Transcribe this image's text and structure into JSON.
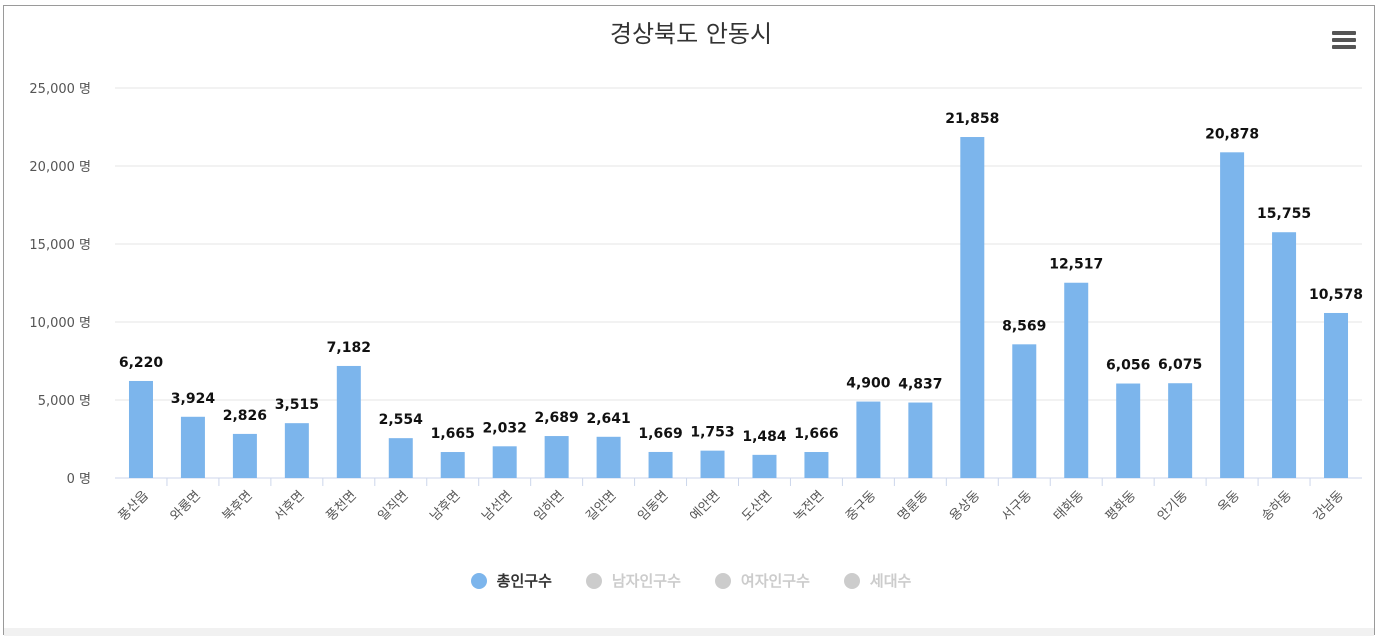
{
  "colors": {
    "bar": "#7cb5ec",
    "inactive": "#cccccc",
    "grid": "#e6e6e6",
    "axis": "#ccd6eb"
  },
  "chart_data": {
    "type": "bar",
    "title": "경상북도 안동시",
    "unit_suffix": " 명",
    "ylim": [
      0,
      25000
    ],
    "y_ticks": [
      "0 명",
      "5,000 명",
      "10,000 명",
      "15,000 명",
      "20,000 명",
      "25,000 명"
    ],
    "y_tick_values": [
      0,
      5000,
      10000,
      15000,
      20000,
      25000
    ],
    "categories": [
      "풍산읍",
      "와룡면",
      "북후면",
      "서후면",
      "풍천면",
      "일직면",
      "남후면",
      "남선면",
      "임하면",
      "길안면",
      "임동면",
      "예안면",
      "도산면",
      "녹전면",
      "중구동",
      "명륜동",
      "용상동",
      "서구동",
      "태화동",
      "평화동",
      "안기동",
      "옥동",
      "송하동",
      "강남동"
    ],
    "series": [
      {
        "name": "총인구수",
        "values": [
          6220,
          3924,
          2826,
          3515,
          7182,
          2554,
          1665,
          2032,
          2689,
          2641,
          1669,
          1753,
          1484,
          1666,
          4900,
          4837,
          21858,
          8569,
          12517,
          6056,
          6075,
          20878,
          15755,
          10578
        ],
        "labels": [
          "6,220",
          "3,924",
          "2,826",
          "3,515",
          "7,182",
          "2,554",
          "1,665",
          "2,032",
          "2,689",
          "2,641",
          "1,669",
          "1,753",
          "1,484",
          "1,666",
          "4,900",
          "4,837",
          "21,858",
          "8,569",
          "12,517",
          "6,056",
          "6,075",
          "20,878",
          "15,755",
          "10,578"
        ]
      }
    ],
    "legend": [
      {
        "name": "총인구수",
        "active": true
      },
      {
        "name": "남자인구수",
        "active": false
      },
      {
        "name": "여자인구수",
        "active": false
      },
      {
        "name": "세대수",
        "active": false
      }
    ],
    "legend_position": "bottom-center"
  },
  "menu": {
    "icon": "hamburger-menu-icon"
  }
}
